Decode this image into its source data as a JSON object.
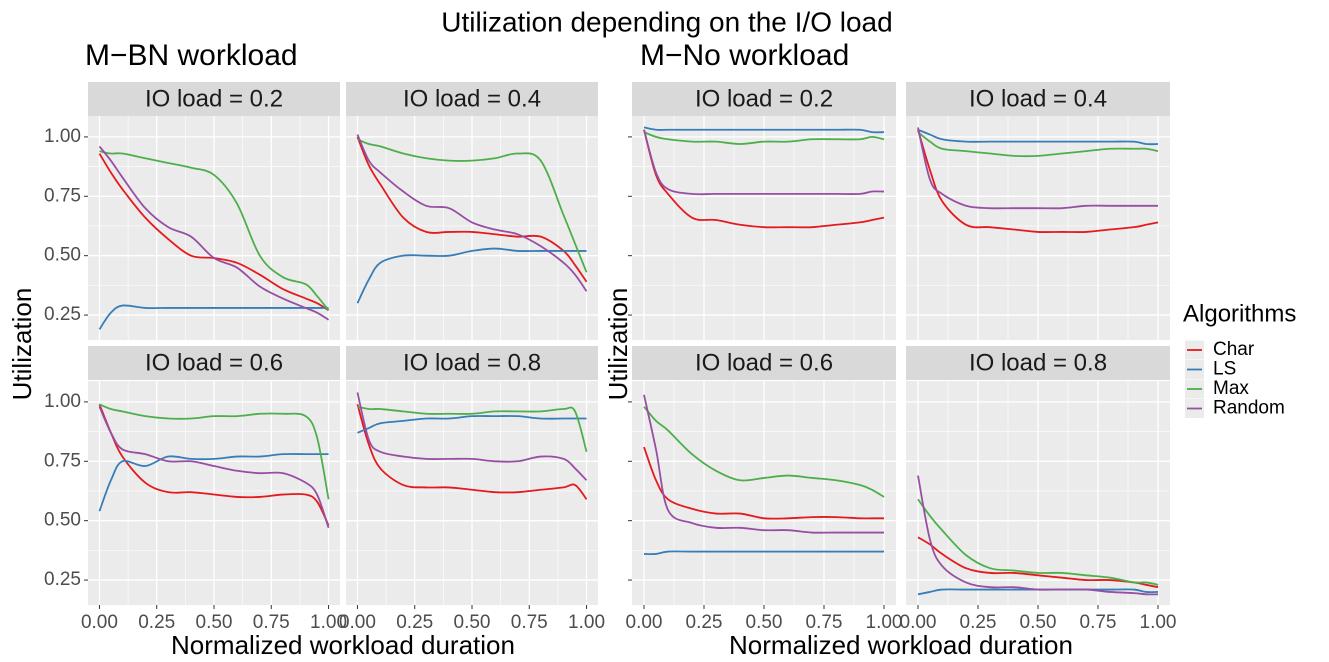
{
  "title": "Utilization depending on the I/O load",
  "legend_title": "Algorithms",
  "chart_data": [
    {
      "type": "line",
      "title": "M−BN workload",
      "xlabel": "Normalized workload duration",
      "ylabel": "Utilization",
      "panels": [
        "IO load = 0.2",
        "IO load = 0.4",
        "IO load = 0.6",
        "IO load = 0.8"
      ],
      "x": [
        0,
        0.05,
        0.1,
        0.2,
        0.3,
        0.4,
        0.5,
        0.6,
        0.7,
        0.8,
        0.9,
        0.95,
        1
      ],
      "xlim": [
        -0.05,
        1.05
      ],
      "ylim": [
        0.145,
        1.088
      ],
      "xticks": [
        {
          "value": 0,
          "label": "0.00"
        },
        0.25,
        {
          "value": 0.5,
          "label": "0.50"
        },
        0.75,
        {
          "value": 1,
          "label": "1.00"
        }
      ],
      "yticks": [
        0.25,
        {
          "value": 0.5,
          "label": "0.50"
        },
        0.75,
        {
          "value": 1,
          "label": "1.00"
        }
      ],
      "grid": true,
      "series": [
        {
          "name": "Char",
          "color": "#e41a1c",
          "values": [
            [
              0.93,
              0.85,
              0.78,
              0.66,
              0.57,
              0.5,
              0.49,
              0.47,
              0.42,
              0.36,
              0.32,
              0.3,
              0.27
            ],
            [
              1.0,
              0.88,
              0.8,
              0.66,
              0.6,
              0.6,
              0.6,
              0.59,
              0.58,
              0.58,
              0.52,
              0.46,
              0.39
            ],
            [
              0.99,
              0.87,
              0.77,
              0.66,
              0.62,
              0.62,
              0.61,
              0.6,
              0.6,
              0.61,
              0.61,
              0.58,
              0.48
            ],
            [
              0.99,
              0.82,
              0.72,
              0.65,
              0.64,
              0.64,
              0.63,
              0.62,
              0.62,
              0.63,
              0.64,
              0.65,
              0.59
            ]
          ]
        },
        {
          "name": "LS",
          "color": "#377eb8",
          "values": [
            [
              0.19,
              0.26,
              0.29,
              0.28,
              0.28,
              0.28,
              0.28,
              0.28,
              0.28,
              0.28,
              0.28,
              0.28,
              0.28
            ],
            [
              0.3,
              0.4,
              0.47,
              0.5,
              0.5,
              0.5,
              0.52,
              0.53,
              0.52,
              0.52,
              0.52,
              0.52,
              0.52
            ],
            [
              0.54,
              0.67,
              0.75,
              0.73,
              0.77,
              0.76,
              0.76,
              0.77,
              0.77,
              0.78,
              0.78,
              0.78,
              0.78
            ],
            [
              0.87,
              0.89,
              0.91,
              0.92,
              0.93,
              0.93,
              0.94,
              0.94,
              0.94,
              0.93,
              0.93,
              0.93,
              0.93
            ]
          ]
        },
        {
          "name": "Max",
          "color": "#4daf4a",
          "values": [
            [
              0.94,
              0.93,
              0.93,
              0.91,
              0.89,
              0.87,
              0.84,
              0.72,
              0.5,
              0.41,
              0.38,
              0.33,
              0.27
            ],
            [
              0.99,
              0.97,
              0.96,
              0.93,
              0.91,
              0.9,
              0.9,
              0.91,
              0.93,
              0.9,
              0.67,
              0.55,
              0.43
            ],
            [
              0.99,
              0.97,
              0.96,
              0.94,
              0.93,
              0.93,
              0.94,
              0.94,
              0.95,
              0.95,
              0.94,
              0.85,
              0.59
            ],
            [
              0.98,
              0.97,
              0.97,
              0.96,
              0.95,
              0.95,
              0.95,
              0.96,
              0.96,
              0.96,
              0.97,
              0.96,
              0.79
            ]
          ]
        },
        {
          "name": "Random",
          "color": "#984ea3",
          "values": [
            [
              0.96,
              0.9,
              0.83,
              0.7,
              0.62,
              0.58,
              0.49,
              0.45,
              0.37,
              0.32,
              0.28,
              0.26,
              0.23
            ],
            [
              1.01,
              0.9,
              0.85,
              0.77,
              0.71,
              0.7,
              0.64,
              0.61,
              0.59,
              0.54,
              0.47,
              0.42,
              0.35
            ],
            [
              0.98,
              0.87,
              0.8,
              0.78,
              0.75,
              0.75,
              0.73,
              0.71,
              0.7,
              0.7,
              0.66,
              0.61,
              0.47
            ],
            [
              1.04,
              0.84,
              0.79,
              0.77,
              0.76,
              0.76,
              0.76,
              0.75,
              0.75,
              0.77,
              0.76,
              0.72,
              0.67
            ]
          ]
        }
      ]
    },
    {
      "type": "line",
      "title": "M−No workload",
      "xlabel": "Normalized workload duration",
      "ylabel": "Utilization",
      "panels": [
        "IO load = 0.2",
        "IO load = 0.4",
        "IO load = 0.6",
        "IO load = 0.8"
      ],
      "x": [
        0,
        0.05,
        0.1,
        0.2,
        0.3,
        0.4,
        0.5,
        0.6,
        0.7,
        0.8,
        0.9,
        0.95,
        1
      ],
      "xlim": [
        -0.05,
        1.05
      ],
      "ylim": [
        0.145,
        1.088
      ],
      "xticks": [
        {
          "value": 0,
          "label": "0.00"
        },
        0.25,
        {
          "value": 0.5,
          "label": "0.50"
        },
        0.75,
        {
          "value": 1,
          "label": "1.00"
        }
      ],
      "yticks": [
        0.25,
        0.5,
        0.75,
        1
      ],
      "grid": true,
      "series": [
        {
          "color": "#e41a1c",
          "values": [
            [
              1.03,
              0.84,
              0.76,
              0.66,
              0.65,
              0.63,
              0.62,
              0.62,
              0.62,
              0.63,
              0.64,
              0.65,
              0.66
            ],
            [
              1.03,
              0.86,
              0.73,
              0.63,
              0.62,
              0.61,
              0.6,
              0.6,
              0.6,
              0.61,
              0.62,
              0.63,
              0.64
            ],
            [
              0.81,
              0.67,
              0.59,
              0.55,
              0.53,
              0.53,
              0.51,
              0.51,
              0.515,
              0.515,
              0.51,
              0.51,
              0.51
            ],
            [
              0.43,
              0.4,
              0.36,
              0.3,
              0.28,
              0.28,
              0.27,
              0.26,
              0.25,
              0.25,
              0.24,
              0.23,
              0.22
            ]
          ]
        },
        {
          "color": "#377eb8",
          "values": [
            [
              1.04,
              1.03,
              1.03,
              1.03,
              1.03,
              1.03,
              1.03,
              1.03,
              1.03,
              1.03,
              1.03,
              1.02,
              1.02
            ],
            [
              1.03,
              1.01,
              0.99,
              0.98,
              0.98,
              0.98,
              0.98,
              0.98,
              0.98,
              0.98,
              0.98,
              0.97,
              0.97
            ],
            [
              0.36,
              0.36,
              0.37,
              0.37,
              0.37,
              0.37,
              0.37,
              0.37,
              0.37,
              0.37,
              0.37,
              0.37,
              0.37
            ],
            [
              0.19,
              0.2,
              0.21,
              0.21,
              0.21,
              0.21,
              0.21,
              0.21,
              0.21,
              0.21,
              0.21,
              0.2,
              0.2
            ]
          ]
        },
        {
          "color": "#4daf4a",
          "values": [
            [
              1.02,
              1.0,
              0.99,
              0.98,
              0.98,
              0.97,
              0.98,
              0.98,
              0.99,
              0.99,
              0.99,
              1.0,
              0.99
            ],
            [
              1.02,
              0.98,
              0.95,
              0.94,
              0.93,
              0.92,
              0.92,
              0.93,
              0.94,
              0.95,
              0.95,
              0.95,
              0.94
            ],
            [
              0.98,
              0.92,
              0.88,
              0.78,
              0.71,
              0.67,
              0.68,
              0.69,
              0.68,
              0.67,
              0.65,
              0.63,
              0.6
            ],
            [
              0.59,
              0.52,
              0.46,
              0.355,
              0.3,
              0.29,
              0.28,
              0.28,
              0.27,
              0.26,
              0.24,
              0.24,
              0.23
            ]
          ]
        },
        {
          "color": "#984ea3",
          "values": [
            [
              1.03,
              0.85,
              0.78,
              0.76,
              0.76,
              0.76,
              0.76,
              0.76,
              0.76,
              0.76,
              0.76,
              0.77,
              0.77
            ],
            [
              1.04,
              0.82,
              0.76,
              0.71,
              0.7,
              0.7,
              0.7,
              0.7,
              0.71,
              0.71,
              0.71,
              0.71,
              0.71
            ],
            [
              1.03,
              0.8,
              0.545,
              0.49,
              0.47,
              0.47,
              0.46,
              0.46,
              0.45,
              0.45,
              0.45,
              0.45,
              0.45
            ],
            [
              0.69,
              0.42,
              0.31,
              0.24,
              0.22,
              0.22,
              0.21,
              0.21,
              0.21,
              0.2,
              0.195,
              0.19,
              0.19
            ]
          ]
        }
      ]
    }
  ]
}
